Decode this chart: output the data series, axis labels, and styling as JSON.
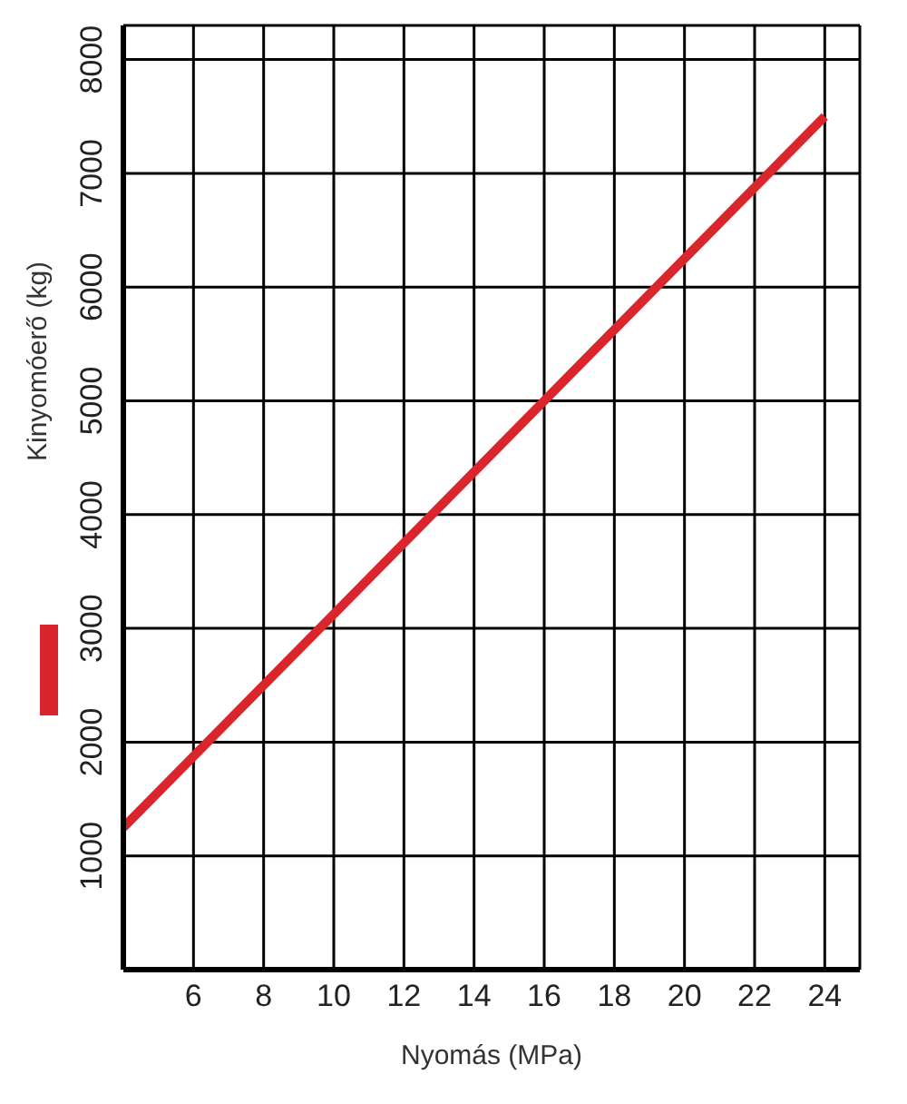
{
  "chart_data": {
    "type": "line",
    "xlabel": "Nyomás (MPa)",
    "ylabel": "Kinyomóerő (kg)",
    "x": [
      4,
      24
    ],
    "series": [
      {
        "color": "#d9252b",
        "values": [
          1250,
          7500
        ]
      }
    ],
    "xlim": [
      4,
      25
    ],
    "xticks": [
      6,
      8,
      10,
      12,
      14,
      16,
      18,
      20,
      22,
      24
    ],
    "ylim": [
      0,
      8300
    ],
    "yticks": [
      1000,
      2000,
      3000,
      4000,
      5000,
      6000,
      7000,
      8000
    ],
    "grid": true,
    "marker": "none",
    "line_style": "solid"
  }
}
